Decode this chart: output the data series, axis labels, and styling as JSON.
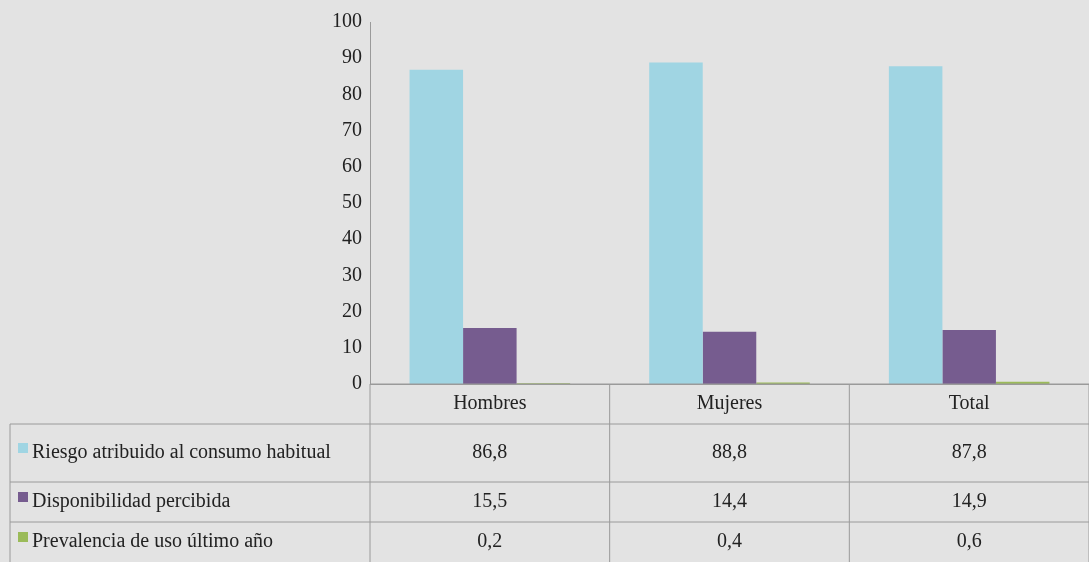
{
  "chart_data": {
    "type": "bar",
    "categories": [
      "Hombres",
      "Mujeres",
      "Total"
    ],
    "series": [
      {
        "name": "Riesgo atribuido al consumo habitual",
        "color": "#a0d5e3",
        "values": [
          86.8,
          88.8,
          87.8
        ],
        "value_labels": [
          "86,8",
          "88,8",
          "87,8"
        ]
      },
      {
        "name": "Disponibilidad percibida",
        "color": "#765c8f",
        "values": [
          15.5,
          14.4,
          14.9
        ],
        "value_labels": [
          "15,5",
          "14,4",
          "14,9"
        ]
      },
      {
        "name": "Prevalencia de uso último año",
        "color": "#9bbb59",
        "values": [
          0.2,
          0.4,
          0.6
        ],
        "value_labels": [
          "0,2",
          "0,4",
          "0,6"
        ]
      }
    ],
    "ylim": [
      0,
      100
    ],
    "yticks": [
      0,
      10,
      20,
      30,
      40,
      50,
      60,
      70,
      80,
      90,
      100
    ],
    "grid": false,
    "legend": "bottom left"
  }
}
